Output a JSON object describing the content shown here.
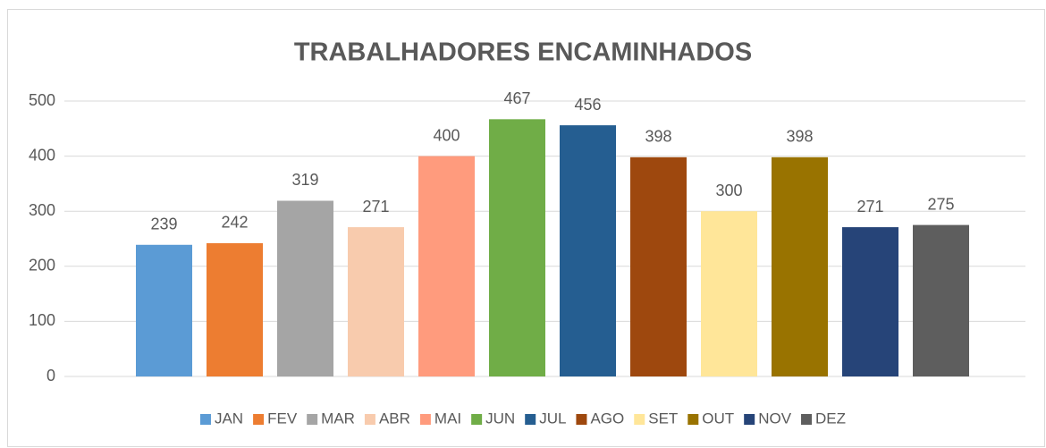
{
  "chart_data": {
    "type": "bar",
    "title": "TRABALHADORES ENCAMINHADOS",
    "series": [
      {
        "name": "JAN",
        "color": "#5b9bd5",
        "values": [
          239
        ]
      },
      {
        "name": "FEV",
        "color": "#ed7d31",
        "values": [
          242
        ]
      },
      {
        "name": "MAR",
        "color": "#a5a5a5",
        "values": [
          319
        ]
      },
      {
        "name": "ABR",
        "color": "#f8cbad",
        "values": [
          271
        ]
      },
      {
        "name": "MAI",
        "color": "#ff9b7d",
        "values": [
          400
        ]
      },
      {
        "name": "JUN",
        "color": "#70ad47",
        "values": [
          467
        ]
      },
      {
        "name": "JUL",
        "color": "#255e91",
        "values": [
          456
        ]
      },
      {
        "name": "AGO",
        "color": "#9e480e",
        "values": [
          398
        ]
      },
      {
        "name": "SET",
        "color": "#ffe699",
        "values": [
          300
        ]
      },
      {
        "name": "OUT",
        "color": "#997300",
        "values": [
          398
        ]
      },
      {
        "name": "NOV",
        "color": "#264478",
        "values": [
          271
        ]
      },
      {
        "name": "DEZ",
        "color": "#5e5e5e",
        "values": [
          275
        ]
      }
    ],
    "ylim": [
      0,
      500
    ],
    "yticks": [
      0,
      100,
      200,
      300,
      400,
      500
    ],
    "grid": true,
    "legend": "bottom"
  }
}
